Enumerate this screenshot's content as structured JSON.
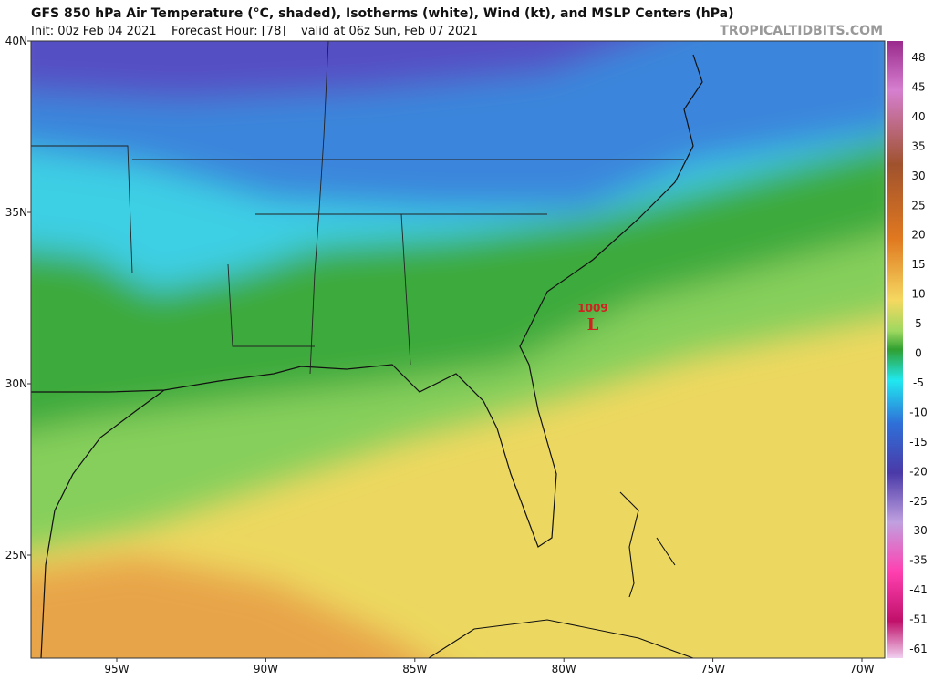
{
  "header": {
    "title": "GFS 850 hPa Air Temperature (°C, shaded), Isotherms (white), Wind (kt), and MSLP Centers (hPa)",
    "init": "Init: 00z Feb 04 2021",
    "forecast_hour": "Forecast Hour: [78]",
    "valid": "valid at 06z Sun, Feb 07 2021",
    "source": "TROPICALTIDBITS.COM"
  },
  "map": {
    "lat_labels": [
      "40N",
      "35N",
      "30N",
      "25N"
    ],
    "lon_labels": [
      "95W",
      "90W",
      "85W",
      "80W",
      "75W",
      "70W"
    ],
    "pressure_center": {
      "value": "1009",
      "symbol": "L"
    }
  },
  "colorbar": {
    "labels": [
      48,
      45,
      40,
      35,
      30,
      25,
      20,
      15,
      10,
      5,
      0,
      -5,
      -10,
      -15,
      -20,
      -25,
      -30,
      -35,
      -41,
      -51,
      -61
    ]
  }
}
